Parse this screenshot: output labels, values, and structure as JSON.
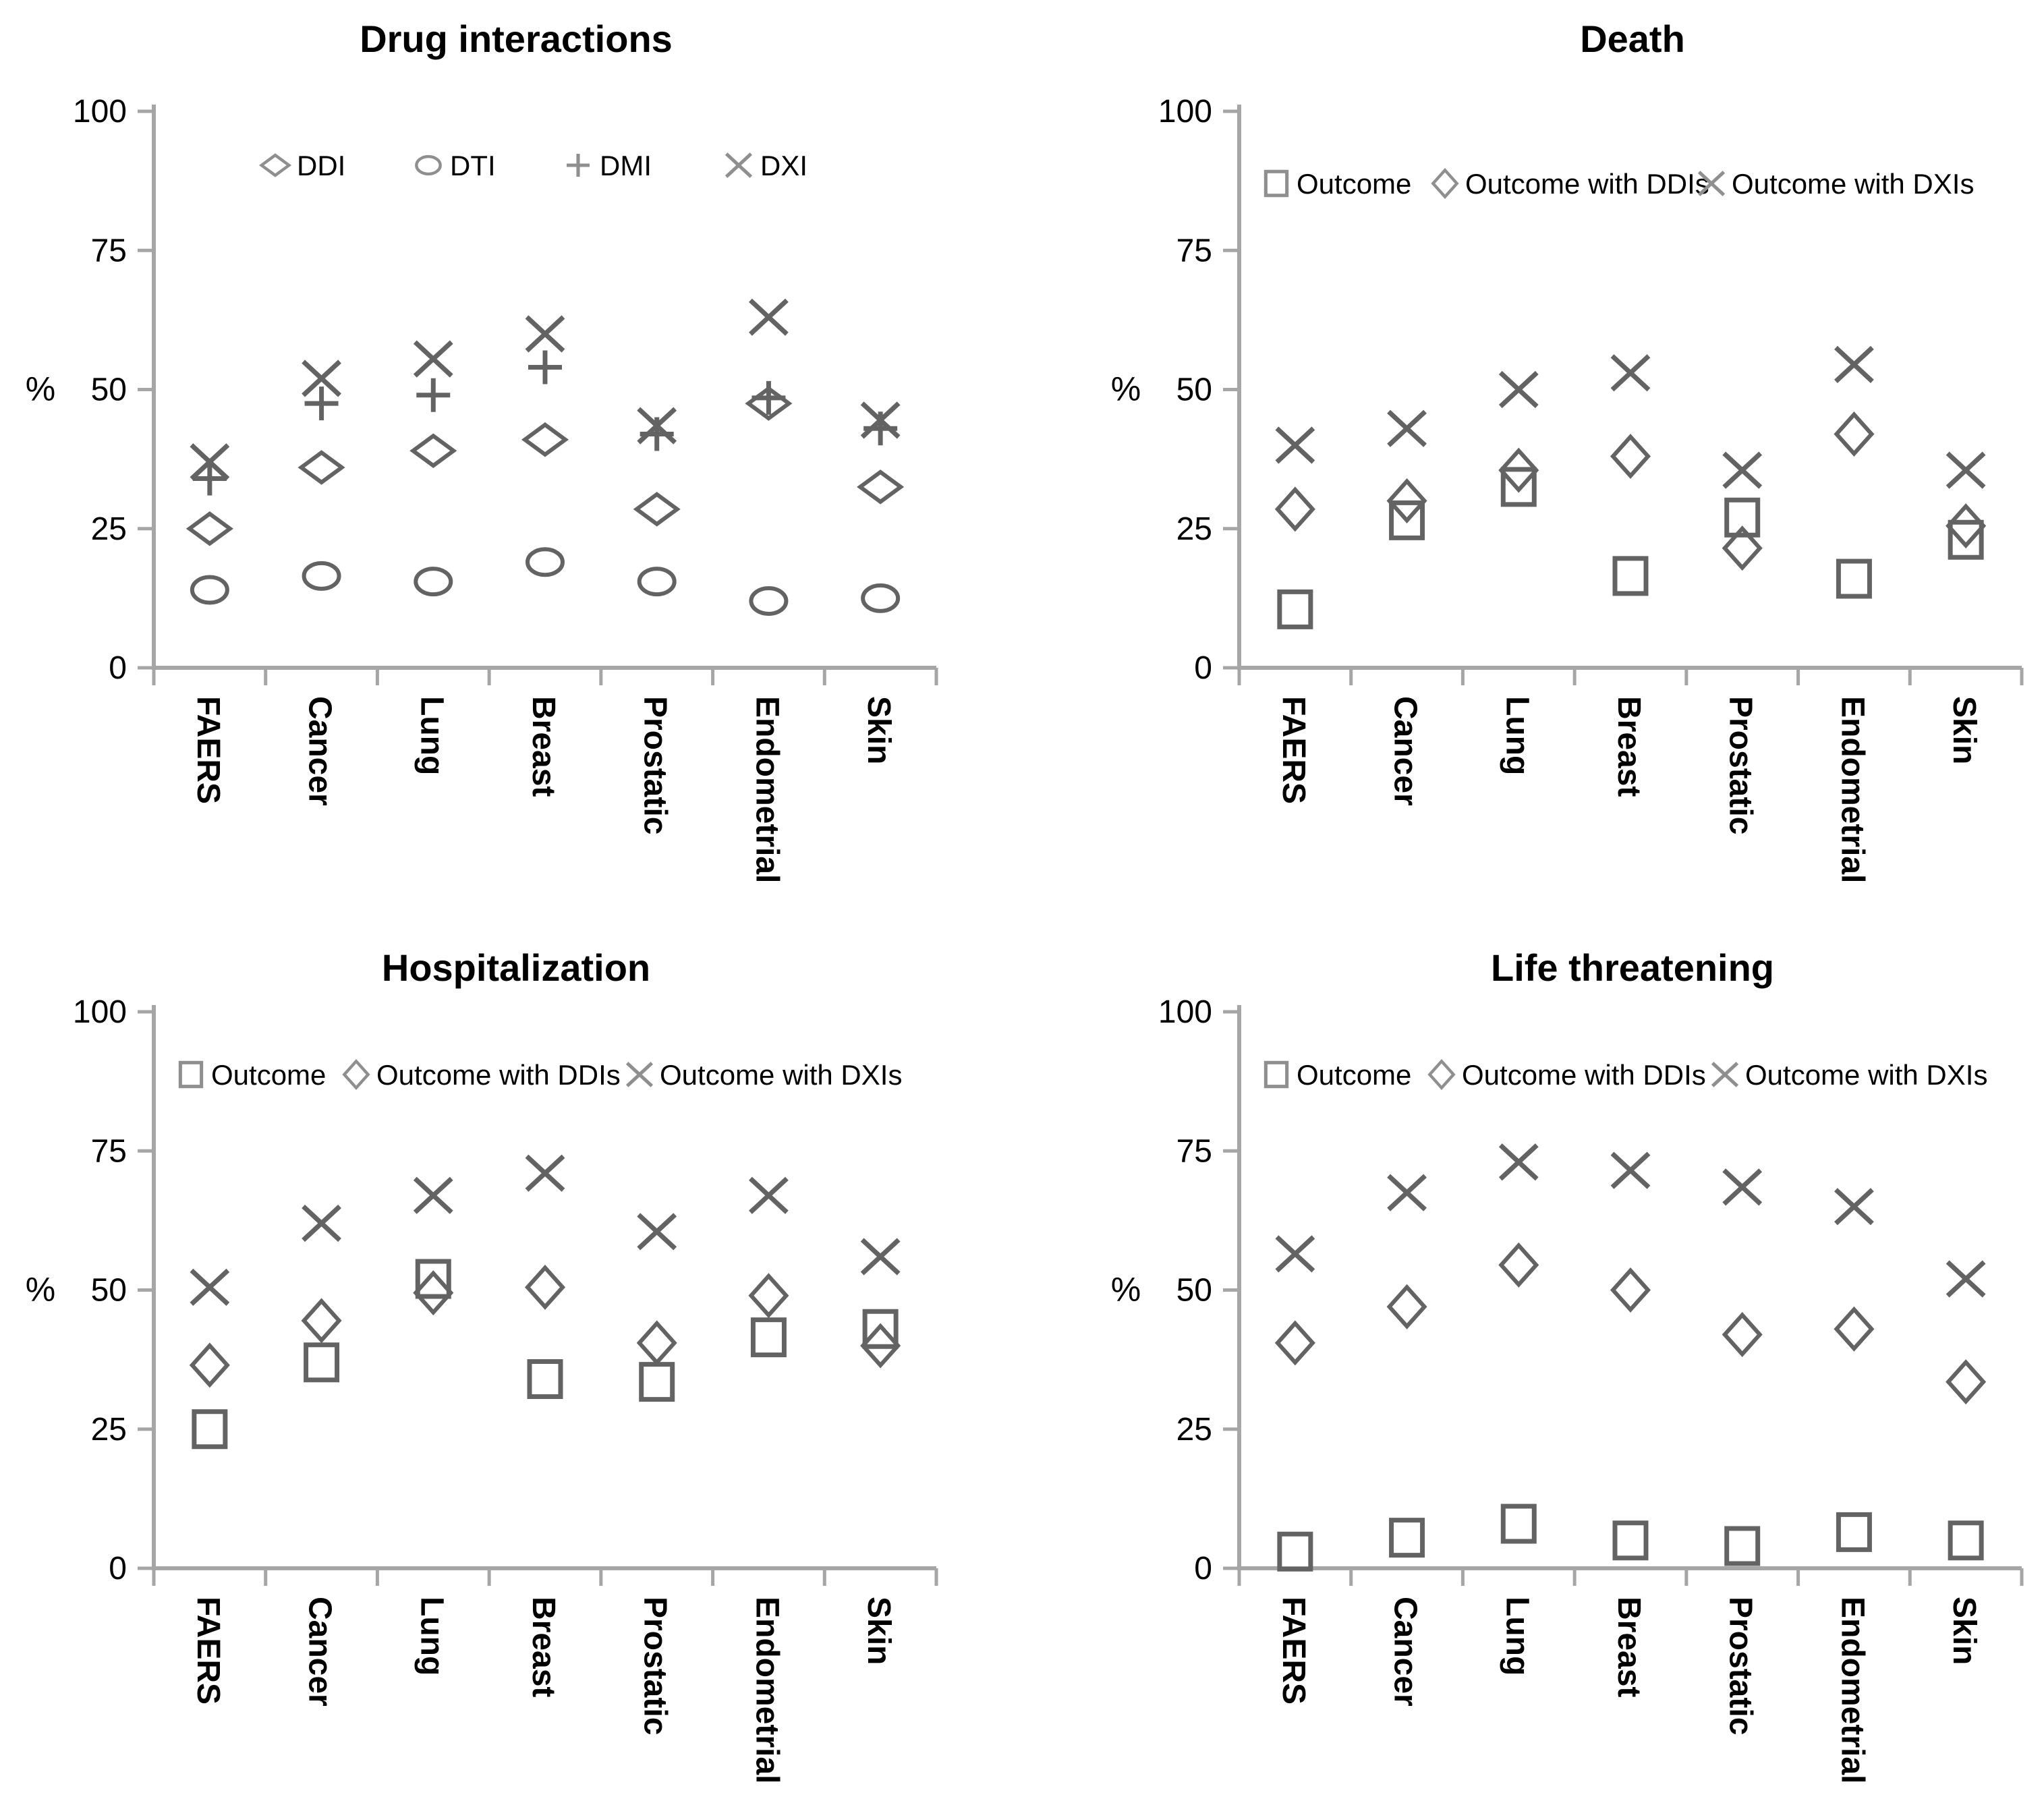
{
  "figure": {
    "background": "#ffffff",
    "colors": {
      "marker": "#636363",
      "legend_marker": "#8f8f8f",
      "axis": "#a6a6a6",
      "text": "#000000"
    }
  },
  "chart_data": [
    {
      "type": "scatter",
      "title": "Drug interactions",
      "ylabel": "%",
      "ylim": [
        0,
        100
      ],
      "yticks": [
        0,
        25,
        50,
        75,
        100
      ],
      "grid": false,
      "legend_position": "top-inside",
      "categories": [
        "FAERS",
        "Cancer",
        "Lung",
        "Breast",
        "Prostatic",
        "Endometrial",
        "Skin"
      ],
      "series": [
        {
          "name": "DDI",
          "marker": "diamond-flat",
          "values": [
            25,
            36,
            39,
            41,
            28.5,
            47.5,
            32.5
          ]
        },
        {
          "name": "DTI",
          "marker": "ellipse",
          "values": [
            14,
            16.5,
            15.5,
            19,
            15.5,
            12,
            12.5
          ]
        },
        {
          "name": "DMI",
          "marker": "plus",
          "values": [
            34,
            47.5,
            49,
            54,
            42,
            48.5,
            43
          ]
        },
        {
          "name": "DXI",
          "marker": "x",
          "values": [
            37,
            52,
            55.5,
            60,
            43.5,
            63,
            44.5
          ]
        }
      ]
    },
    {
      "type": "scatter",
      "title": "Death",
      "ylabel": "%",
      "ylim": [
        0,
        100
      ],
      "yticks": [
        0,
        25,
        50,
        75,
        100
      ],
      "grid": false,
      "legend_position": "top-inside",
      "categories": [
        "FAERS",
        "Cancer",
        "Lung",
        "Breast",
        "Prostatic",
        "Endometrial",
        "Skin"
      ],
      "series": [
        {
          "name": "Outcome",
          "marker": "square",
          "values": [
            10.5,
            26.5,
            32.5,
            16.5,
            27,
            16,
            23
          ]
        },
        {
          "name": "Outcome with DDIs",
          "marker": "diamond",
          "values": [
            28.5,
            30,
            35.5,
            38,
            21.5,
            42,
            25.5
          ]
        },
        {
          "name": "Outcome with DXIs",
          "marker": "x",
          "values": [
            40,
            43,
            50,
            53,
            35.5,
            54.5,
            35.5
          ]
        }
      ]
    },
    {
      "type": "scatter",
      "title": "Hospitalization",
      "ylabel": "%",
      "ylim": [
        0,
        100
      ],
      "yticks": [
        0,
        25,
        50,
        75,
        100
      ],
      "grid": false,
      "legend_position": "top-inside",
      "categories": [
        "FAERS",
        "Cancer",
        "Lung",
        "Breast",
        "Prostatic",
        "Endometrial",
        "Skin"
      ],
      "series": [
        {
          "name": "Outcome",
          "marker": "square",
          "values": [
            25,
            37,
            52,
            34,
            33.5,
            41.5,
            43
          ]
        },
        {
          "name": "Outcome with DDIs",
          "marker": "diamond",
          "values": [
            36.5,
            44.5,
            49.5,
            50.5,
            40.5,
            49,
            40
          ]
        },
        {
          "name": "Outcome with DXIs",
          "marker": "x",
          "values": [
            50.5,
            62,
            67,
            71,
            60.5,
            67,
            56
          ]
        }
      ]
    },
    {
      "type": "scatter",
      "title": "Life threatening",
      "ylabel": "%",
      "ylim": [
        0,
        100
      ],
      "yticks": [
        0,
        25,
        50,
        75,
        100
      ],
      "grid": false,
      "legend_position": "top-inside",
      "categories": [
        "FAERS",
        "Cancer",
        "Lung",
        "Breast",
        "Prostatic",
        "Endometrial",
        "Skin"
      ],
      "series": [
        {
          "name": "Outcome",
          "marker": "square",
          "values": [
            3,
            5.5,
            8,
            5,
            4,
            6.5,
            5
          ]
        },
        {
          "name": "Outcome with DDIs",
          "marker": "diamond",
          "values": [
            40.5,
            47,
            54.5,
            50,
            42,
            43,
            33.5
          ]
        },
        {
          "name": "Outcome with DXIs",
          "marker": "x",
          "values": [
            56.5,
            67.5,
            73,
            71.5,
            68.5,
            65,
            52
          ]
        }
      ]
    }
  ]
}
